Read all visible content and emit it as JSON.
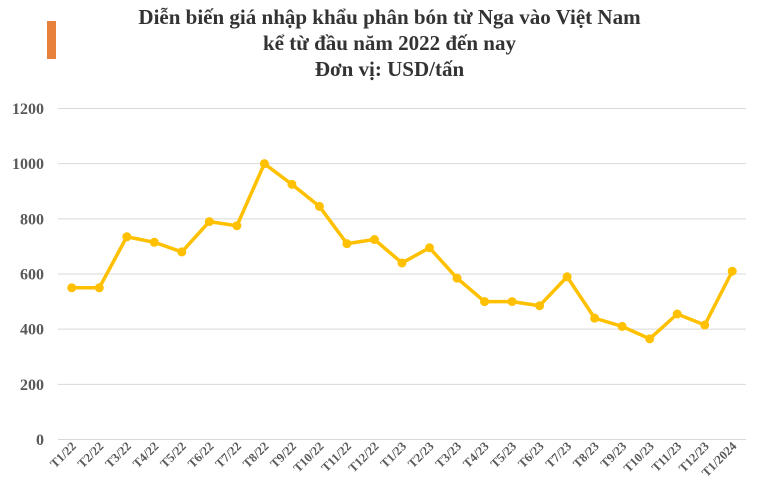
{
  "title": {
    "line1": "Diễn biến giá nhập khẩu phân bón từ Nga vào Việt Nam",
    "line2": "kể từ đầu năm 2022 đến nay",
    "unit": "Đơn vị: USD/tấn"
  },
  "colors": {
    "line": "#FFC000",
    "marker": "#FFC000",
    "accent_bar": "#E8813C",
    "grid": "#D9D9D9",
    "axis_text": "#595959",
    "title_text": "#333333"
  },
  "chart_data": {
    "type": "line",
    "title": "Diễn biến giá nhập khẩu phân bón từ Nga vào Việt Nam kể từ đầu năm 2022 đến nay",
    "ylabel": "USD/tấn",
    "xlabel": "",
    "ylim": [
      0,
      1200
    ],
    "yticks": [
      0,
      200,
      400,
      600,
      800,
      1000,
      1200
    ],
    "grid": true,
    "legend": false,
    "categories": [
      "T1/22",
      "T2/22",
      "T3/22",
      "T4/22",
      "T5/22",
      "T6/22",
      "T7/22",
      "T8/22",
      "T9/22",
      "T10/22",
      "T11/22",
      "T12/22",
      "T1/23",
      "T2/23",
      "T3/23",
      "T4/23",
      "T5/23",
      "T6/23",
      "T7/23",
      "T8/23",
      "T9/23",
      "T10/23",
      "T11/23",
      "T12/23",
      "T1/2024"
    ],
    "values": [
      550,
      550,
      735,
      715,
      680,
      790,
      775,
      1000,
      925,
      845,
      710,
      725,
      640,
      695,
      585,
      500,
      500,
      485,
      590,
      440,
      410,
      365,
      455,
      415,
      610
    ]
  }
}
